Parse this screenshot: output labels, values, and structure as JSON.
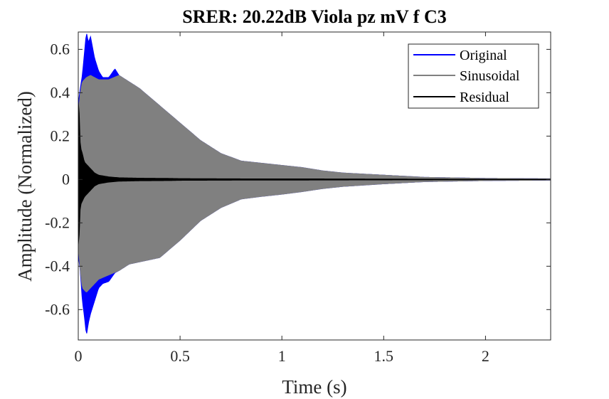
{
  "chart_data": {
    "type": "line",
    "title": "SRER: 20.22dB Viola pz mV f C3",
    "xlabel": "Time (s)",
    "ylabel": "Amplitude (Normalized)",
    "xlim": [
      0,
      2.32
    ],
    "ylim": [
      -0.74,
      0.68
    ],
    "xticks": [
      0,
      0.5,
      1,
      1.5,
      2
    ],
    "xtick_labels": [
      "0",
      "0.5",
      "1",
      "1.5",
      "2"
    ],
    "yticks": [
      -0.6,
      -0.4,
      -0.2,
      0,
      0.2,
      0.4,
      0.6
    ],
    "ytick_labels": [
      "-0.6",
      "-0.4",
      "-0.2",
      "0",
      "0.2",
      "0.4",
      "0.6"
    ],
    "grid": false,
    "legend_position": "top-right",
    "series": [
      {
        "name": "Original",
        "color": "#0000ff",
        "envelope": {
          "t": [
            0,
            0.01,
            0.02,
            0.03,
            0.04,
            0.05,
            0.06,
            0.08,
            0.1,
            0.12,
            0.15,
            0.18,
            0.2,
            0.25,
            0.3,
            0.4,
            0.5,
            0.6,
            0.7,
            0.8,
            0.9,
            1.0,
            1.1,
            1.2,
            1.3,
            1.5,
            1.7,
            2.0,
            2.32
          ],
          "max": [
            0.35,
            0.42,
            0.48,
            0.58,
            0.68,
            0.63,
            0.66,
            0.56,
            0.5,
            0.47,
            0.47,
            0.51,
            0.48,
            0.45,
            0.42,
            0.34,
            0.26,
            0.18,
            0.12,
            0.085,
            0.075,
            0.065,
            0.055,
            0.04,
            0.03,
            0.02,
            0.01,
            0.005,
            0.003
          ],
          "min": [
            -0.35,
            -0.42,
            -0.56,
            -0.63,
            -0.72,
            -0.66,
            -0.62,
            -0.56,
            -0.5,
            -0.48,
            -0.47,
            -0.43,
            -0.42,
            -0.39,
            -0.38,
            -0.36,
            -0.28,
            -0.19,
            -0.13,
            -0.09,
            -0.078,
            -0.068,
            -0.056,
            -0.042,
            -0.032,
            -0.02,
            -0.01,
            -0.005,
            -0.003
          ]
        }
      },
      {
        "name": "Sinusoidal",
        "color": "#808080",
        "envelope": {
          "t": [
            0,
            0.01,
            0.02,
            0.04,
            0.06,
            0.08,
            0.1,
            0.15,
            0.2,
            0.25,
            0.3,
            0.4,
            0.5,
            0.6,
            0.7,
            0.8,
            0.9,
            1.0,
            1.1,
            1.2,
            1.3,
            1.5,
            1.7,
            2.0,
            2.32
          ],
          "max": [
            0.3,
            0.4,
            0.45,
            0.47,
            0.48,
            0.47,
            0.46,
            0.46,
            0.48,
            0.45,
            0.42,
            0.34,
            0.26,
            0.18,
            0.12,
            0.085,
            0.075,
            0.065,
            0.055,
            0.04,
            0.03,
            0.02,
            0.01,
            0.005,
            0.003
          ],
          "min": [
            -0.3,
            -0.42,
            -0.5,
            -0.52,
            -0.5,
            -0.48,
            -0.46,
            -0.44,
            -0.42,
            -0.39,
            -0.38,
            -0.36,
            -0.28,
            -0.19,
            -0.13,
            -0.09,
            -0.078,
            -0.068,
            -0.056,
            -0.042,
            -0.032,
            -0.02,
            -0.01,
            -0.005,
            -0.003
          ]
        }
      },
      {
        "name": "Residual",
        "color": "#000000",
        "envelope": {
          "t": [
            0,
            0.005,
            0.01,
            0.02,
            0.03,
            0.05,
            0.08,
            0.1,
            0.15,
            0.2,
            0.3,
            0.45,
            0.5,
            0.8,
            1.0,
            1.5,
            2.0,
            2.32
          ],
          "max": [
            0.36,
            0.3,
            0.15,
            0.12,
            0.08,
            0.06,
            0.03,
            0.02,
            0.012,
            0.008,
            0.006,
            0.005,
            0.004,
            0.003,
            0.003,
            0.002,
            0.001,
            0.001
          ],
          "min": [
            -0.3,
            -0.25,
            -0.12,
            -0.1,
            -0.08,
            -0.06,
            -0.03,
            -0.02,
            -0.012,
            -0.008,
            -0.006,
            -0.005,
            -0.004,
            -0.003,
            -0.003,
            -0.002,
            -0.001,
            -0.001
          ]
        }
      }
    ]
  }
}
